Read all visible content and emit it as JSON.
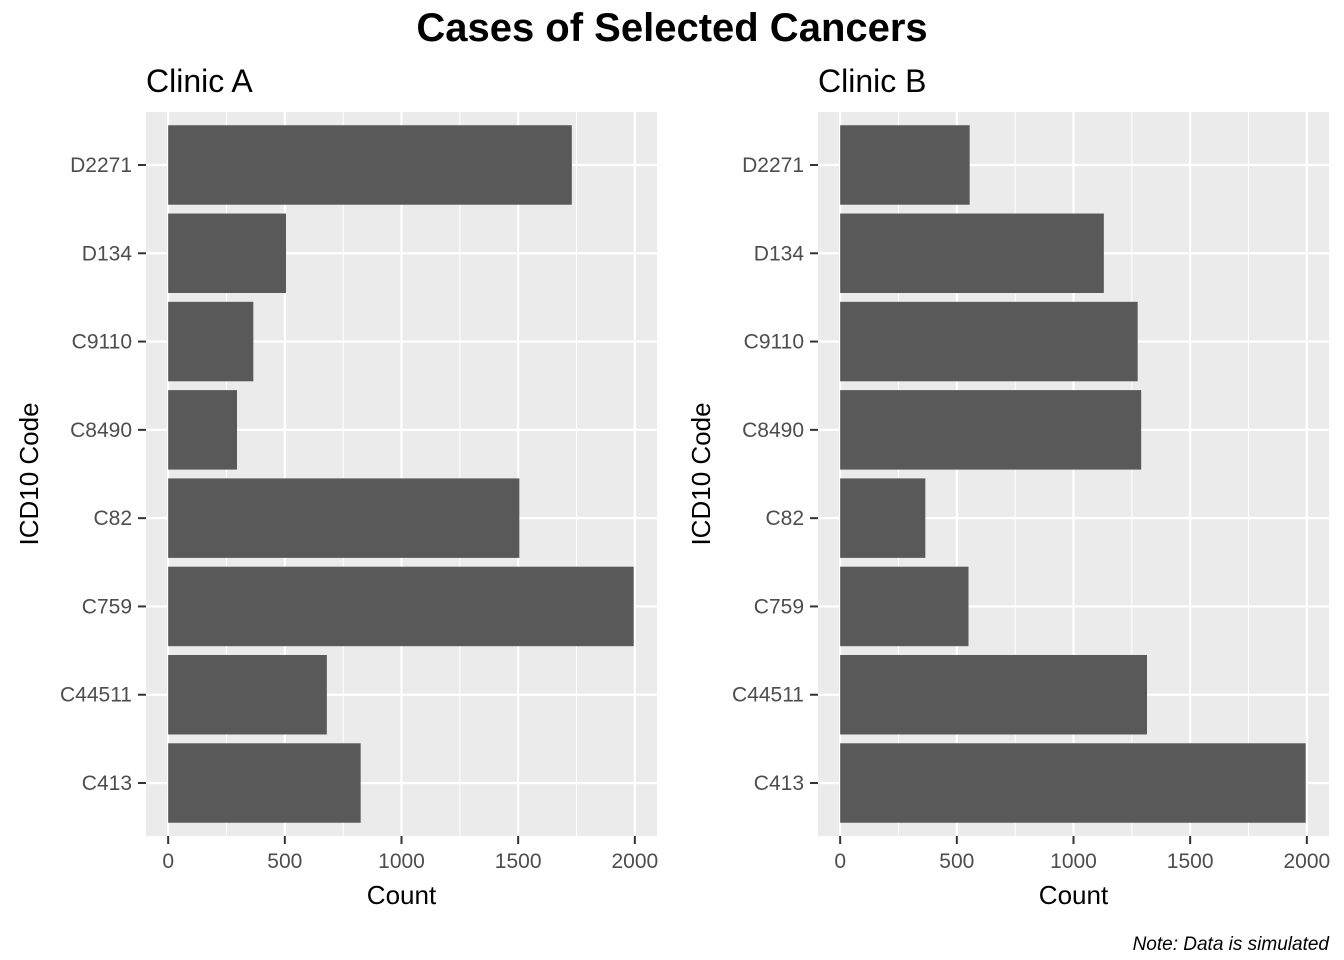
{
  "title": "Cases of Selected Cancers",
  "caption": "Note: Data is simulated",
  "colors": {
    "panel_background": "#ebebeb",
    "grid": "#ffffff",
    "bar": "#595959",
    "tick_text": "#4d4d4d",
    "tick_mark": "#333333"
  },
  "chart_data": [
    {
      "type": "bar",
      "orientation": "horizontal",
      "title": "Clinic A",
      "xlabel": "Count",
      "ylabel": "ICD10 Code",
      "categories": [
        "D2271",
        "D134",
        "C9110",
        "C8490",
        "C82",
        "C759",
        "C44511",
        "C413"
      ],
      "values": [
        1730,
        505,
        365,
        295,
        1505,
        1995,
        680,
        825
      ],
      "xlim": [
        -95,
        2095
      ],
      "xticks": [
        0,
        500,
        1000,
        1500,
        2000
      ],
      "xtick_labels": [
        "0",
        "500",
        "1000",
        "1500",
        "2000"
      ],
      "grid": true
    },
    {
      "type": "bar",
      "orientation": "horizontal",
      "title": "Clinic B",
      "xlabel": "Count",
      "ylabel": "ICD10 Code",
      "categories": [
        "D2271",
        "D134",
        "C9110",
        "C8490",
        "C82",
        "C759",
        "C44511",
        "C413"
      ],
      "values": [
        555,
        1130,
        1275,
        1290,
        365,
        550,
        1315,
        1995
      ],
      "xlim": [
        -95,
        2095
      ],
      "xticks": [
        0,
        500,
        1000,
        1500,
        2000
      ],
      "xtick_labels": [
        "0",
        "500",
        "1000",
        "1500",
        "2000"
      ],
      "grid": true
    }
  ]
}
